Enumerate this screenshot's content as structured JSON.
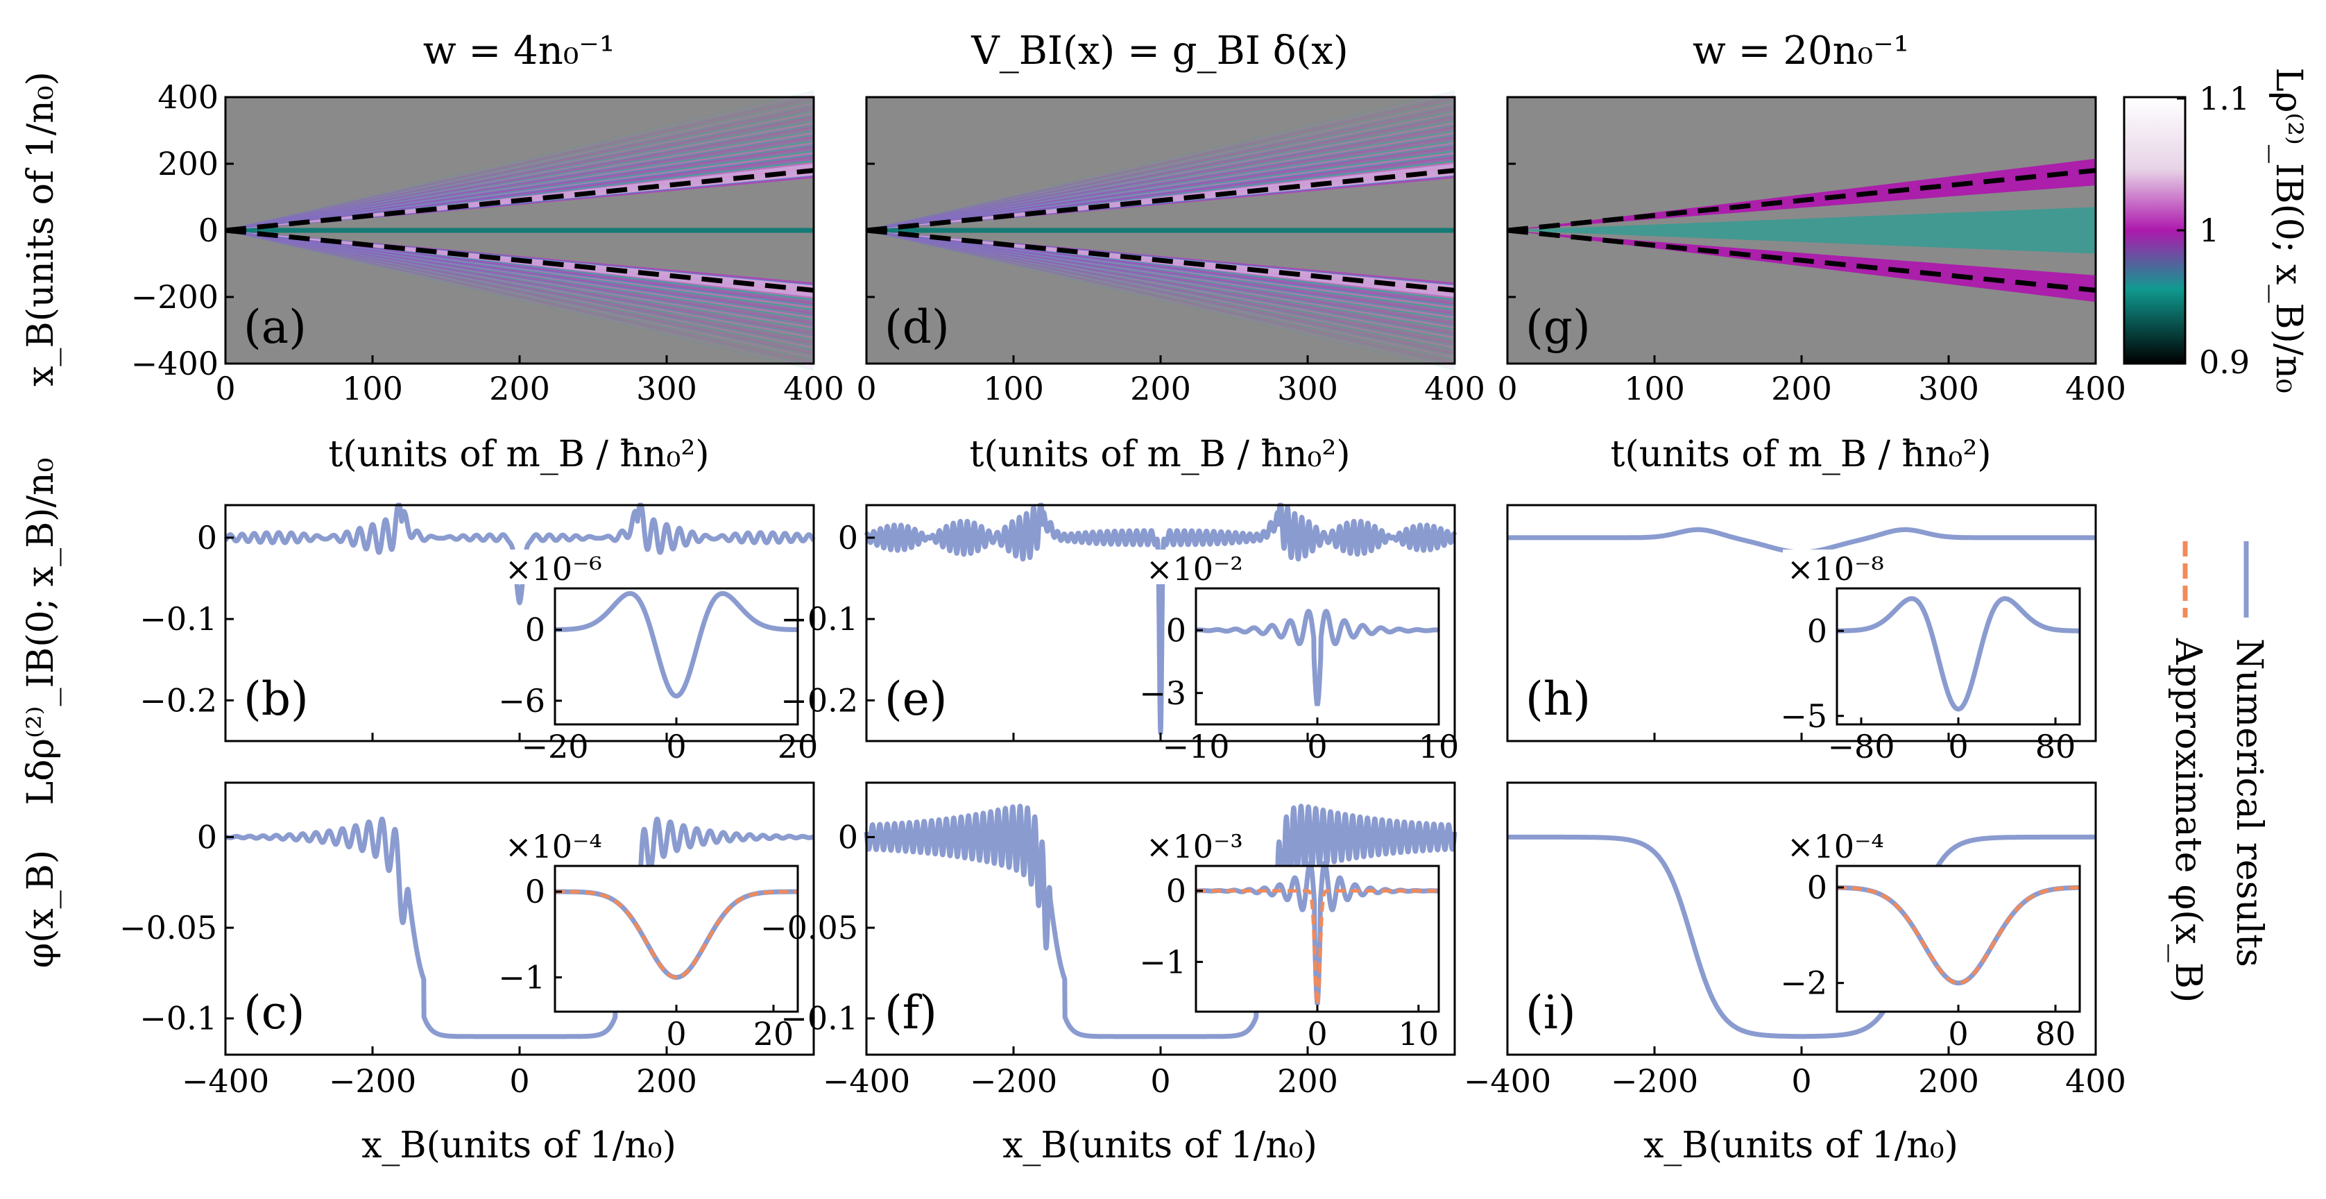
{
  "titles": [
    "w = 4n₀⁻¹",
    "V_BI(x) = g_BI δ(x)",
    "w = 20n₀⁻¹"
  ],
  "colorbar": {
    "label": "Lρ⁽²⁾_IB(0; x_B)/n₀",
    "ticks": [
      "1.1",
      "1",
      "0.9"
    ],
    "range": [
      0.9,
      1.1
    ],
    "colors": {
      "low": "#000000",
      "teal": "#109a90",
      "mid": "#ad19ad",
      "light": "#e7d4e7",
      "high": "#ffffff"
    }
  },
  "legend": {
    "numerical": "Numerical results",
    "approximate": "Approximate φ(x_B)",
    "numerical_color": "#8a9bd0",
    "approximate_color": "#f28a5a"
  },
  "panel_labels": [
    "(a)",
    "(b)",
    "(c)",
    "(d)",
    "(e)",
    "(f)",
    "(g)",
    "(h)",
    "(i)"
  ],
  "axis": {
    "t_label": "t(units of m_B / ħn₀²)",
    "xB_label": "x_B(units of 1/n₀)",
    "xB_ylabel": "x_B(units of 1/n₀)",
    "drho_label": "Lδρ⁽²⁾_IB(0; x_B)/n₀",
    "phi_label": "φ(x_B)"
  },
  "chart_data": [
    {
      "panel": "a",
      "type": "heatmap",
      "title": "w = 4n₀⁻¹",
      "x_range": [
        0,
        400
      ],
      "y_range": [
        -400,
        400
      ],
      "xticks": [
        "0",
        "100",
        "200",
        "300",
        "400"
      ],
      "yticks": [
        "400",
        "200",
        "0",
        "−200",
        "−400"
      ],
      "dashed_lines": [
        [
          [
            0,
            0
          ],
          [
            400,
            180
          ]
        ],
        [
          [
            0,
            0
          ],
          [
            400,
            -180
          ]
        ]
      ],
      "fringes": true,
      "center": "teal"
    },
    {
      "panel": "d",
      "type": "heatmap",
      "title": "V_BI(x) = g_BI δ(x)",
      "x_range": [
        0,
        400
      ],
      "y_range": [
        -400,
        400
      ],
      "xticks": [
        "0",
        "100",
        "200",
        "300",
        "400"
      ],
      "dashed_lines": [
        [
          [
            0,
            0
          ],
          [
            400,
            180
          ]
        ],
        [
          [
            0,
            0
          ],
          [
            400,
            -180
          ]
        ]
      ],
      "fringes": true,
      "center": "teal"
    },
    {
      "panel": "g",
      "type": "heatmap",
      "title": "w = 20n₀⁻¹",
      "x_range": [
        0,
        400
      ],
      "y_range": [
        -400,
        400
      ],
      "xticks": [
        "0",
        "100",
        "200",
        "300",
        "400"
      ],
      "dashed_lines": [
        [
          [
            0,
            0
          ],
          [
            400,
            180
          ]
        ],
        [
          [
            0,
            0
          ],
          [
            400,
            -180
          ]
        ]
      ],
      "fringes": false,
      "center": "teal"
    },
    {
      "panel": "b",
      "type": "line",
      "x_range": [
        -400,
        400
      ],
      "y_range": [
        -0.25,
        0.04
      ],
      "yticks": [
        "0",
        "−0.1",
        "−0.2"
      ],
      "curve": {
        "kind": "drho",
        "dip": -0.08,
        "dip_width": 5,
        "front": 160,
        "osc_amp": 0.022,
        "osc_period": 18,
        "osc_decay": 0.013,
        "bg_amp": 0.004,
        "front_bump": 0.02,
        "front_bump_width": 10
      },
      "inset": {
        "x_range": [
          -20,
          20
        ],
        "y_range": [
          -8,
          3.5
        ],
        "xticks": [
          "−20",
          "0",
          "20"
        ],
        "yticks": [
          "0",
          "−6"
        ],
        "scale": "×10⁻⁶",
        "curve": {
          "kind": "mexhat",
          "amp": -5.6,
          "sigma": 4.5,
          "side": 2.3
        }
      }
    },
    {
      "panel": "e",
      "type": "line",
      "x_range": [
        -400,
        400
      ],
      "y_range": [
        -0.25,
        0.04
      ],
      "yticks": [
        "0",
        "−0.1",
        "−0.2"
      ],
      "curve": {
        "kind": "drho",
        "dip": -0.24,
        "dip_width": 1.6,
        "front": 160,
        "osc_amp": 0.022,
        "osc_period": 10,
        "osc_decay": 0.006,
        "bg_amp": 0.009,
        "front_bump": 0.02,
        "front_bump_width": 10
      },
      "inset": {
        "x_range": [
          -10,
          10
        ],
        "y_range": [
          -4.5,
          2
        ],
        "xticks": [
          "−10",
          "0",
          "10"
        ],
        "yticks": [
          "0",
          "−3"
        ],
        "scale": "×10⁻²",
        "curve": {
          "kind": "osc",
          "amp": -3.6,
          "period": 1.5,
          "decay": 0.45
        }
      }
    },
    {
      "panel": "h",
      "type": "line",
      "x_range": [
        -400,
        400
      ],
      "y_range": [
        -0.25,
        0.04
      ],
      "curve": {
        "kind": "smooth_drho",
        "dip": -0.018,
        "dip_width": 45,
        "front": 140,
        "bump": 0.01,
        "bump_width": 28
      },
      "inset": {
        "x_range": [
          -100,
          100
        ],
        "y_range": [
          -5.5,
          2.5
        ],
        "xticks": [
          "−80",
          "0",
          "80"
        ],
        "yticks": [
          "0",
          "−5"
        ],
        "scale": "×10⁻⁸",
        "curve": {
          "kind": "mexhat",
          "amp": -4.6,
          "sigma": 22,
          "side": 1.9
        }
      }
    },
    {
      "panel": "c",
      "type": "line",
      "x_range": [
        -400,
        400
      ],
      "y_range": [
        -0.12,
        0.03
      ],
      "yticks": [
        "0",
        "−0.05",
        "−0.1"
      ],
      "xticks": [
        "−400",
        "−200",
        "0",
        "200"
      ],
      "curve": {
        "kind": "phi",
        "depth": -0.11,
        "front": 150,
        "edge": 9,
        "osc_amp": 0.022,
        "osc_period": 18,
        "osc_decay": 0.017
      },
      "inset": {
        "x_range": [
          -25,
          25
        ],
        "y_range": [
          -1.4,
          0.3
        ],
        "xticks": [
          "0",
          "20"
        ],
        "yticks": [
          "0",
          "−1"
        ],
        "scale": "×10⁻⁴",
        "curve": {
          "kind": "gauss",
          "amp": -1.0,
          "sigma": 6
        },
        "approx": {
          "kind": "gauss",
          "amp": -1.0,
          "sigma": 6
        }
      }
    },
    {
      "panel": "f",
      "type": "line",
      "x_range": [
        -400,
        400
      ],
      "y_range": [
        -0.12,
        0.03
      ],
      "yticks": [
        "0",
        "−0.05",
        "−0.1"
      ],
      "xticks": [
        "−400",
        "−200",
        "0",
        "200"
      ],
      "curve": {
        "kind": "phi",
        "depth": -0.11,
        "front": 150,
        "edge": 9,
        "osc_amp": 0.022,
        "osc_period": 10,
        "osc_decay": 0.008,
        "bg_amp": 0.005
      },
      "inset": {
        "x_range": [
          -12,
          12
        ],
        "y_range": [
          -1.7,
          0.35
        ],
        "xticks": [
          "0",
          "10"
        ],
        "yticks": [
          "0",
          "−1"
        ],
        "scale": "×10⁻³",
        "curve": {
          "kind": "osc",
          "amp": -1.6,
          "period": 1.5,
          "decay": 0.5
        },
        "approx": {
          "kind": "gauss",
          "amp": -1.6,
          "sigma": 0.25
        }
      }
    },
    {
      "panel": "i",
      "type": "line",
      "x_range": [
        -400,
        400
      ],
      "y_range": [
        -0.12,
        0.03
      ],
      "xticks": [
        "−400",
        "−200",
        "0",
        "200",
        "400"
      ],
      "curve": {
        "kind": "smooth_phi",
        "depth": -0.11,
        "front": 150,
        "edge": 20
      },
      "inset": {
        "x_range": [
          -100,
          100
        ],
        "y_range": [
          -2.6,
          0.45
        ],
        "xticks": [
          "0",
          "80"
        ],
        "yticks": [
          "0",
          "−2"
        ],
        "scale": "×10⁻⁴",
        "curve": {
          "kind": "gauss",
          "amp": -2.0,
          "sigma": 28
        },
        "approx": {
          "kind": "gauss",
          "amp": -2.0,
          "sigma": 28
        }
      }
    }
  ]
}
